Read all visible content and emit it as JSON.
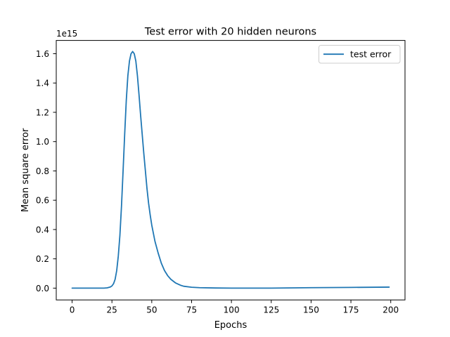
{
  "chart_data": {
    "type": "line",
    "title": "Test error with 20 hidden neurons",
    "xlabel": "Epochs",
    "ylabel": "Mean square error",
    "y_scale_label": "1e15",
    "xlim": [
      -9.95,
      208.95
    ],
    "ylim": [
      -0.0805,
      1.6905
    ],
    "x_ticks": [
      0,
      25,
      50,
      75,
      100,
      125,
      150,
      175,
      200
    ],
    "y_ticks": [
      0.0,
      0.2,
      0.4,
      0.6,
      0.8,
      1.0,
      1.2,
      1.4,
      1.6
    ],
    "x_tick_labels": [
      "0",
      "25",
      "50",
      "75",
      "100",
      "125",
      "150",
      "175",
      "200"
    ],
    "y_tick_labels": [
      "0.0",
      "0.2",
      "0.4",
      "0.6",
      "0.8",
      "1.0",
      "1.2",
      "1.4",
      "1.6"
    ],
    "grid": false,
    "legend_position": "top-right",
    "colors": {
      "series": "#1f77b4",
      "axes": "#000000"
    },
    "series": [
      {
        "name": "test error",
        "x": [
          0,
          5,
          10,
          15,
          18,
          20,
          22,
          24,
          25,
          26,
          27,
          28,
          29,
          30,
          31,
          32,
          33,
          34,
          35,
          36,
          37,
          38,
          39,
          40,
          41,
          42,
          43,
          44,
          45,
          46,
          47,
          48,
          49,
          50,
          52,
          54,
          56,
          58,
          60,
          62,
          65,
          68,
          70,
          75,
          80,
          90,
          100,
          125,
          150,
          175,
          199
        ],
        "y": [
          0.0,
          0.0,
          0.0,
          0.0,
          0.0,
          0.0,
          0.002,
          0.008,
          0.015,
          0.03,
          0.06,
          0.12,
          0.22,
          0.36,
          0.56,
          0.8,
          1.05,
          1.28,
          1.45,
          1.55,
          1.6,
          1.615,
          1.6,
          1.55,
          1.45,
          1.32,
          1.18,
          1.05,
          0.92,
          0.8,
          0.68,
          0.58,
          0.5,
          0.43,
          0.32,
          0.24,
          0.17,
          0.12,
          0.085,
          0.06,
          0.035,
          0.02,
          0.013,
          0.006,
          0.003,
          0.001,
          0.0,
          0.0,
          0.003,
          0.005,
          0.007
        ]
      }
    ]
  }
}
